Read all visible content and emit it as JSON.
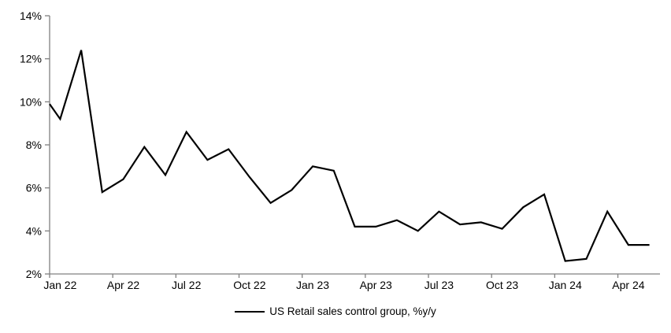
{
  "chart_data": {
    "type": "line",
    "title": "",
    "xlabel": "",
    "ylabel": "",
    "legend": "US Retail sales control group, %y/y",
    "legend_position": "bottom-center",
    "grid": false,
    "ylim": [
      2,
      14
    ],
    "y_ticks": [
      "2%",
      "4%",
      "6%",
      "8%",
      "10%",
      "12%",
      "14%"
    ],
    "x_tick_labels": [
      "Jan 22",
      "Apr 22",
      "Jul 22",
      "Oct 22",
      "Jan 23",
      "Apr 23",
      "Jul 23",
      "Oct 23",
      "Jan 24",
      "Apr 24"
    ],
    "x_tick_every_n_months": 3,
    "categories": [
      "Jan 22",
      "Feb 22",
      "Mar 22",
      "Apr 22",
      "May 22",
      "Jun 22",
      "Jul 22",
      "Aug 22",
      "Sep 22",
      "Oct 22",
      "Nov 22",
      "Dec 22",
      "Jan 23",
      "Feb 23",
      "Mar 23",
      "Apr 23",
      "May 23",
      "Jun 23",
      "Jul 23",
      "Aug 23",
      "Sep 23",
      "Oct 23",
      "Nov 23",
      "Dec 23",
      "Jan 24",
      "Feb 24",
      "Mar 24",
      "Apr 24",
      "May 24"
    ],
    "series": [
      {
        "name": "US Retail sales control group, %y/y",
        "color": "#000000",
        "left_edge_value": 9.9,
        "values": [
          9.2,
          12.4,
          5.8,
          6.4,
          7.9,
          6.6,
          8.6,
          7.3,
          7.8,
          6.5,
          5.3,
          5.9,
          7.0,
          6.8,
          4.2,
          4.2,
          4.5,
          4.0,
          4.9,
          4.3,
          4.4,
          4.1,
          5.1,
          5.7,
          2.6,
          2.7,
          4.9,
          3.35,
          3.35
        ]
      }
    ],
    "colors": {
      "line": "#000000",
      "axis": "#808080",
      "text": "#000000",
      "background": "#ffffff"
    }
  }
}
